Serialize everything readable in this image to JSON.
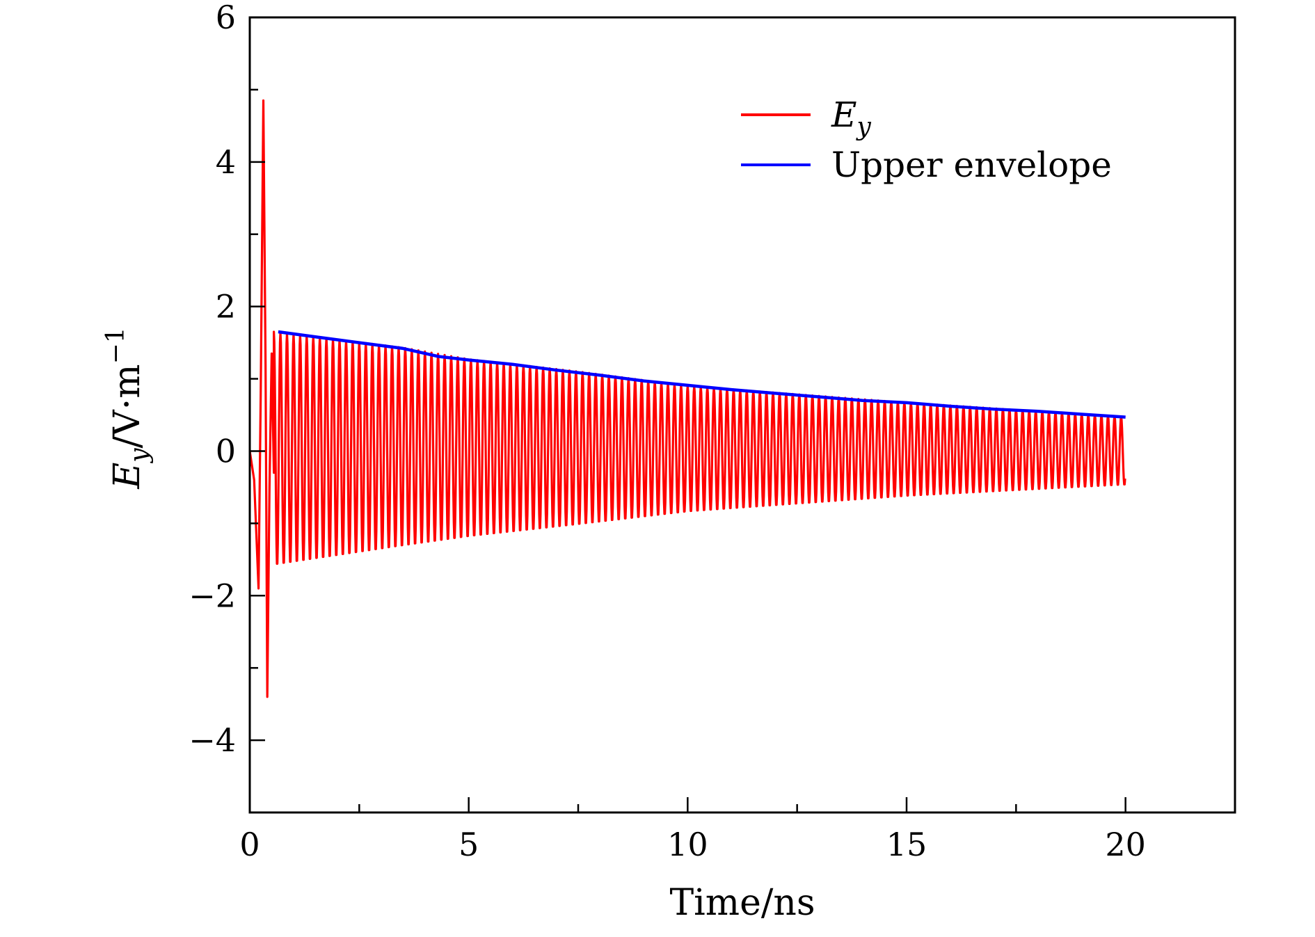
{
  "chart_data": {
    "type": "line",
    "xlabel": "Time/ns",
    "ylabel": "Ey/V·m−1",
    "ylabel_parts": {
      "E": "E",
      "sub": "y",
      "unit": "/V·m",
      "sup": "−1"
    },
    "xlim": [
      0,
      22.5
    ],
    "ylim": [
      -5,
      6
    ],
    "x_ticks": [
      0,
      5,
      10,
      15,
      20
    ],
    "x_tick_labels": [
      "0",
      "5",
      "10",
      "15",
      "20"
    ],
    "y_ticks": [
      -4,
      -2,
      0,
      2,
      4,
      6
    ],
    "y_tick_labels": [
      "−4",
      "−2",
      "0",
      "2",
      "4",
      "6"
    ],
    "grid": false,
    "legend_position": "top-right",
    "series": [
      {
        "name": "Ey",
        "legend_parts": {
          "E": "E",
          "sub": "y"
        },
        "color": "#ff0000",
        "pulse": {
          "x": [
            0.0,
            0.1,
            0.2,
            0.25,
            0.31,
            0.36,
            0.4,
            0.45,
            0.5,
            0.55
          ],
          "y": [
            0.0,
            -0.4,
            -1.9,
            0.8,
            4.85,
            1.2,
            -3.4,
            -0.5,
            1.35,
            -0.3
          ]
        },
        "oscillation": {
          "start": 0.55,
          "end": 20.0,
          "period": 0.15,
          "max": {
            "x": [
              0.55,
              3.5,
              5.0,
              7.5,
              10.0,
              15.0,
              20.0
            ],
            "y": [
              1.65,
              1.43,
              1.27,
              1.1,
              0.9,
              0.67,
              0.47
            ]
          },
          "min": {
            "x": [
              0.55,
              3.5,
              5.0,
              7.5,
              10.0,
              15.0,
              20.0
            ],
            "y": [
              -1.6,
              -1.33,
              -1.2,
              -1.03,
              -0.85,
              -0.63,
              -0.47
            ]
          }
        }
      },
      {
        "name": "Upper envelope",
        "color": "#0000ff",
        "x": [
          0.65,
          1.5,
          2.5,
          3.5,
          4.3,
          5.0,
          6.0,
          7.0,
          8.0,
          9.0,
          10.0,
          11.0,
          12.0,
          13.0,
          14.0,
          15.0,
          16.0,
          17.0,
          18.0,
          19.0,
          20.0
        ],
        "y": [
          1.65,
          1.58,
          1.5,
          1.42,
          1.31,
          1.26,
          1.2,
          1.12,
          1.05,
          0.97,
          0.91,
          0.85,
          0.8,
          0.75,
          0.7,
          0.67,
          0.62,
          0.58,
          0.55,
          0.51,
          0.47
        ]
      }
    ]
  }
}
